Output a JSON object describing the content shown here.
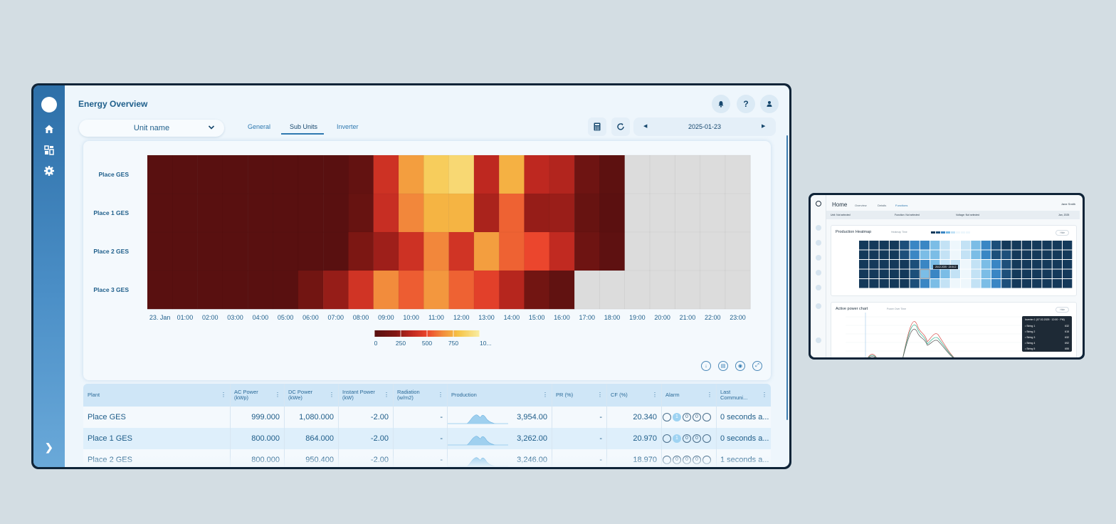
{
  "main": {
    "title": "Energy Overview",
    "unit_select": "Unit name",
    "tabs": [
      {
        "label": "General",
        "active": false
      },
      {
        "label": "Sub Units",
        "active": true
      },
      {
        "label": "Inverter",
        "active": false
      }
    ],
    "date": "2025-01-23",
    "icons": {
      "sidebar": [
        "home-icon",
        "dashboard-icon",
        "settings-icon"
      ],
      "top": [
        "bell-icon",
        "help-icon",
        "user-icon"
      ],
      "toolbar": [
        "calculator-icon",
        "refresh-icon"
      ],
      "card": [
        "download-icon",
        "table-icon",
        "settings-icon",
        "expand-icon"
      ]
    },
    "colors": {
      "accent": "#2f79b0",
      "sidebar_top": "#2d6fa8",
      "sidebar_bottom": "#6aa9d9",
      "header_row": "#cfe6f7",
      "alt_row": "#deeffb",
      "no_data": "#dcdcdc"
    }
  },
  "chart_data": {
    "type": "heatmap",
    "title": "",
    "rows": [
      "Place GES",
      "Place 1 GES",
      "Place 2 GES",
      "Place 3 GES"
    ],
    "columns": [
      "23. Jan",
      "01:00",
      "02:00",
      "03:00",
      "04:00",
      "05:00",
      "06:00",
      "07:00",
      "08:00",
      "09:00",
      "10:00",
      "11:00",
      "12:00",
      "13:00",
      "14:00",
      "15:00",
      "16:00",
      "17:00",
      "18:00",
      "19:00",
      "20:00",
      "21:00",
      "22:00",
      "23:00"
    ],
    "values": [
      [
        0,
        0,
        0,
        0,
        0,
        0,
        0,
        0,
        50,
        400,
        700,
        850,
        900,
        350,
        750,
        350,
        320,
        100,
        20,
        null,
        null,
        null,
        null,
        null
      ],
      [
        0,
        0,
        0,
        0,
        0,
        0,
        0,
        0,
        70,
        380,
        640,
        760,
        760,
        300,
        560,
        250,
        260,
        70,
        10,
        null,
        null,
        null,
        null,
        null
      ],
      [
        0,
        0,
        0,
        0,
        0,
        0,
        0,
        0,
        170,
        270,
        400,
        640,
        410,
        700,
        560,
        500,
        360,
        100,
        25,
        null,
        null,
        null,
        null,
        null
      ],
      [
        0,
        0,
        0,
        0,
        0,
        0,
        120,
        250,
        410,
        650,
        550,
        680,
        560,
        470,
        330,
        120,
        40,
        null,
        null,
        null,
        null,
        null,
        null,
        null
      ]
    ],
    "color_range": [
      0,
      1000
    ],
    "legend_ticks": [
      "0",
      "250",
      "500",
      "750",
      "10..."
    ]
  },
  "table": {
    "headers": [
      "Plant",
      "AC Power (kWp)",
      "DC Power (kWe)",
      "Instant Power (kW)",
      "Radiation (w/m2)",
      "Production",
      "PR (%)",
      "CF (%)",
      "Alarm",
      "Last Communi..."
    ],
    "rows": [
      {
        "plant": "Place GES",
        "ac": "999.000",
        "dc": "1,080.000",
        "instant": "-2.00",
        "radiation": "-",
        "production": "3,954.00",
        "pr": "-",
        "cf": "20.340",
        "alarms": [
          "0",
          "1",
          "0",
          "0",
          "0"
        ],
        "last": "0 seconds a..."
      },
      {
        "plant": "Place 1 GES",
        "ac": "800.000",
        "dc": "864.000",
        "instant": "-2.00",
        "radiation": "-",
        "production": "3,262.00",
        "pr": "-",
        "cf": "20.970",
        "alarms": [
          "0",
          "1",
          "0",
          "0",
          "0"
        ],
        "last": "0 seconds a..."
      },
      {
        "plant": "Place 2 GES",
        "ac": "800.000",
        "dc": "950.400",
        "instant": "-2.00",
        "radiation": "-",
        "production": "3,246.00",
        "pr": "-",
        "cf": "18.970",
        "alarms": [
          "0",
          "0",
          "0",
          "0",
          "0"
        ],
        "last": "1 seconds a..."
      }
    ]
  },
  "secondary": {
    "title": "Home",
    "tabs": [
      "Overview",
      "Details",
      "Functions"
    ],
    "user": "Jane Smith",
    "toolbar": [
      "Unit: Not selected",
      "Function: Not selected",
      "Voltage: Not selected",
      "Jan, 2025"
    ],
    "heatmap_title": "Production Heatmap",
    "heatmap_sub": "Heatmap Time",
    "heatmap_hover": "25.02.2025 · 23:54.2",
    "power_title": "Active power chart",
    "power_sub": "Power Over Time",
    "hide_label": "Hide",
    "tooltip": {
      "header": "Inverter 1 (07.02.2025 · 12:00 · PM)",
      "rows": [
        {
          "name": "String 1",
          "value": "632"
        },
        {
          "name": "String 2",
          "value": "615"
        },
        {
          "name": "String 3",
          "value": "632"
        },
        {
          "name": "String 4",
          "value": "692"
        },
        {
          "name": "String 5",
          "value": "655"
        }
      ]
    }
  }
}
